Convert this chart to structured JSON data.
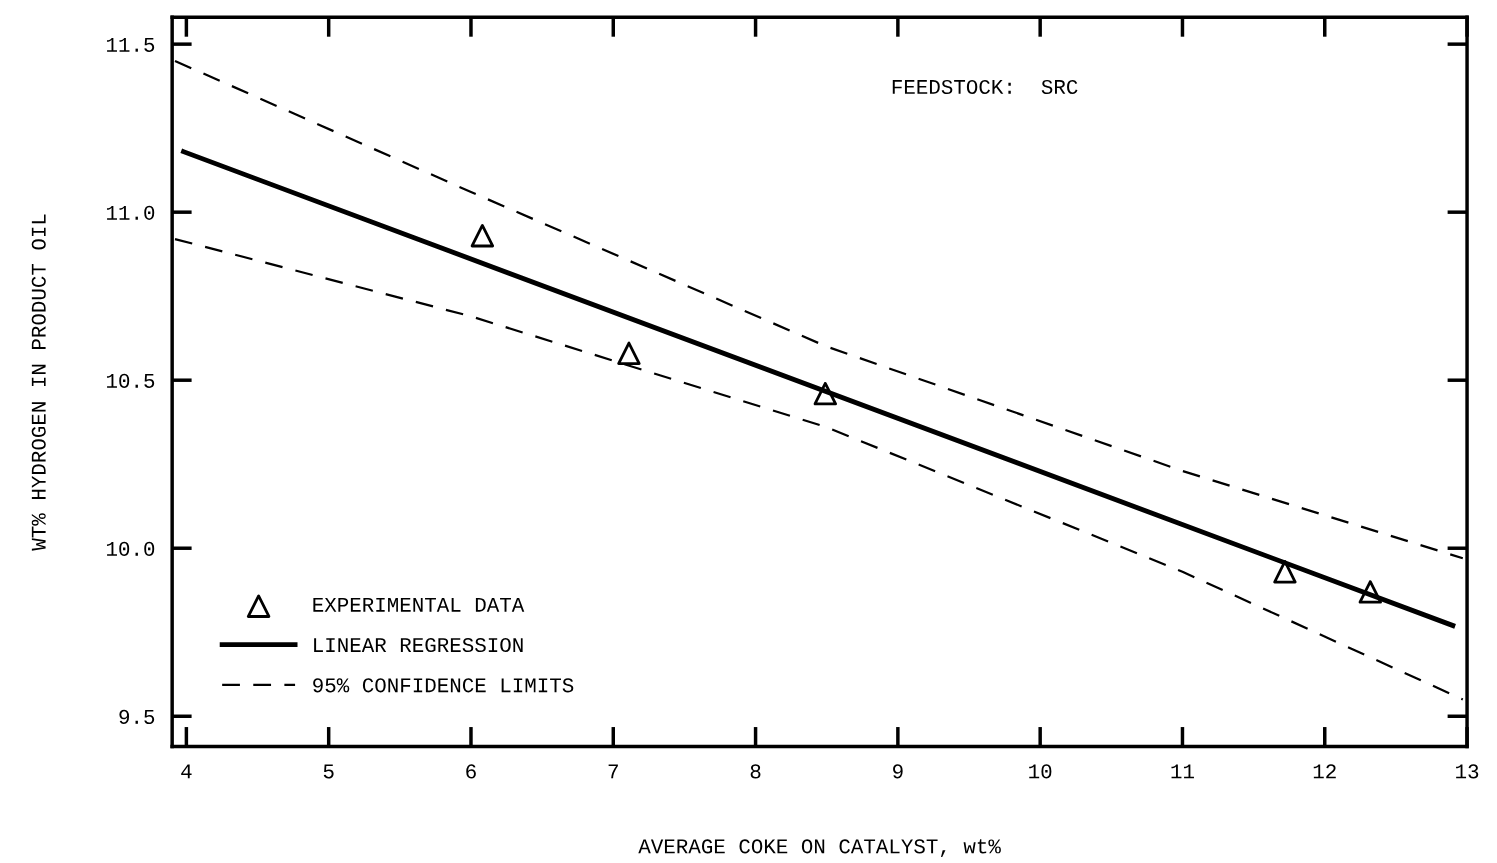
{
  "chart_data": {
    "type": "scatter",
    "xlabel": "AVERAGE COKE ON CATALYST, wt%",
    "ylabel": "WT% HYDROGEN IN PRODUCT OIL",
    "annotations": [
      "FEEDSTOCK:  SRC"
    ],
    "xlim": [
      3.9,
      13
    ],
    "ylim": [
      9.41,
      11.58
    ],
    "xticks": [
      4,
      5,
      6,
      7,
      8,
      9,
      10,
      11,
      12,
      13
    ],
    "yticks": [
      {
        "value": 9.5,
        "label": "9.5"
      },
      {
        "value": 10.0,
        "label": "10.0"
      },
      {
        "value": 10.5,
        "label": "10.5"
      },
      {
        "value": 11.0,
        "label": "11.0"
      },
      {
        "value": 11.5,
        "label": "11.5"
      }
    ],
    "grid": false,
    "legend": "bottom left",
    "series": [
      {
        "name": "EXPERIMENTAL DATA",
        "marker": "triangle",
        "color": "#000000",
        "x": [
          6.08,
          7.11,
          8.49,
          11.72,
          12.32
        ],
        "values": [
          10.93,
          10.58,
          10.46,
          9.93,
          9.87
        ]
      },
      {
        "name": "LINEAR REGRESSION",
        "type": "line",
        "line_style": "solid",
        "color": "#000000",
        "x": [
          3.98,
          12.9
        ],
        "values": [
          11.18,
          9.77
        ]
      },
      {
        "name": "95% CONFIDENCE LIMITS",
        "type": "line",
        "line_style": "dashed",
        "color": "#000000",
        "x": [
          3.92,
          6.0,
          8.5,
          11.0,
          12.97
        ],
        "values": [
          11.45,
          11.06,
          10.6,
          10.23,
          9.97
        ]
      },
      {
        "type": "line",
        "line_style": "dashed",
        "color": "#000000",
        "x": [
          3.92,
          6.0,
          8.5,
          11.0,
          12.97
        ],
        "values": [
          10.92,
          10.69,
          10.36,
          9.93,
          9.55
        ]
      }
    ]
  }
}
